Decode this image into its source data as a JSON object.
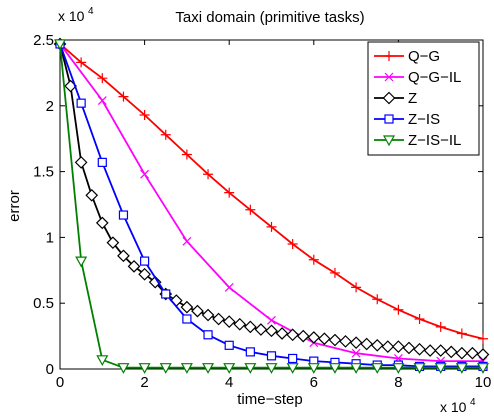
{
  "chart_data": {
    "type": "line",
    "title": "Taxi domain (primitive tasks)",
    "xlabel": "time−step",
    "ylabel": "error",
    "xlim": [
      0,
      10
    ],
    "ylim": [
      0,
      2.5
    ],
    "x_ticks": [
      "0",
      "2",
      "4",
      "6",
      "8",
      "10"
    ],
    "y_ticks": [
      "0",
      "0.5",
      "1",
      "1.5",
      "2",
      "2.5"
    ],
    "x_multiplier": {
      "base": "x 10",
      "exp": "4"
    },
    "y_multiplier": {
      "base": "x 10",
      "exp": "4"
    },
    "legend_position": "top-right",
    "grid": false,
    "series": [
      {
        "name": "Q−G",
        "color": "#ff0000",
        "marker": "plus",
        "x": [
          0,
          0.5,
          1.0,
          1.5,
          2.0,
          2.5,
          3.0,
          3.5,
          4.0,
          4.5,
          5.0,
          5.5,
          6.0,
          6.5,
          7.0,
          7.5,
          8.0,
          8.5,
          9.0,
          9.5,
          10.0
        ],
        "values": [
          2.47,
          2.33,
          2.21,
          2.07,
          1.93,
          1.78,
          1.63,
          1.48,
          1.34,
          1.21,
          1.08,
          0.95,
          0.83,
          0.73,
          0.62,
          0.53,
          0.45,
          0.38,
          0.32,
          0.27,
          0.23
        ]
      },
      {
        "name": "Q−G−IL",
        "color": "#ff00ff",
        "marker": "x",
        "x": [
          0,
          1.0,
          2.0,
          3.0,
          4.0,
          5.0,
          6.0,
          7.0,
          8.0,
          9.0,
          10.0
        ],
        "values": [
          2.47,
          2.04,
          1.48,
          0.97,
          0.62,
          0.37,
          0.2,
          0.12,
          0.08,
          0.06,
          0.06
        ]
      },
      {
        "name": "Z",
        "color": "#000000",
        "marker": "diamond",
        "x": [
          0,
          0.25,
          0.5,
          0.75,
          1.0,
          1.25,
          1.5,
          1.75,
          2.0,
          2.25,
          2.5,
          2.75,
          3.0,
          3.25,
          3.5,
          3.75,
          4.0,
          4.25,
          4.5,
          4.75,
          5.0,
          5.25,
          5.5,
          5.75,
          6.0,
          6.25,
          6.5,
          6.75,
          7.0,
          7.25,
          7.5,
          7.75,
          8.0,
          8.25,
          8.5,
          8.75,
          9.0,
          9.25,
          9.5,
          9.75,
          10.0
        ],
        "values": [
          2.47,
          2.15,
          1.57,
          1.32,
          1.11,
          0.96,
          0.86,
          0.78,
          0.72,
          0.66,
          0.57,
          0.52,
          0.47,
          0.44,
          0.41,
          0.38,
          0.36,
          0.34,
          0.32,
          0.3,
          0.29,
          0.27,
          0.26,
          0.25,
          0.24,
          0.23,
          0.22,
          0.21,
          0.2,
          0.19,
          0.18,
          0.17,
          0.17,
          0.16,
          0.15,
          0.14,
          0.14,
          0.13,
          0.12,
          0.12,
          0.11
        ]
      },
      {
        "name": "Z−IS",
        "color": "#0000ff",
        "marker": "square",
        "x": [
          0,
          0.5,
          1.0,
          1.5,
          2.0,
          2.5,
          3.0,
          3.5,
          4.0,
          4.5,
          5.0,
          5.5,
          6.0,
          6.5,
          7.0,
          7.5,
          8.0,
          8.5,
          9.0,
          9.5,
          10.0
        ],
        "values": [
          2.47,
          2.02,
          1.57,
          1.17,
          0.82,
          0.57,
          0.38,
          0.26,
          0.18,
          0.13,
          0.1,
          0.08,
          0.06,
          0.05,
          0.04,
          0.03,
          0.03,
          0.02,
          0.02,
          0.02,
          0.02
        ]
      },
      {
        "name": "Z−IS−IL",
        "color": "#008000",
        "marker": "triangle-down",
        "x": [
          0,
          0.5,
          1.0,
          1.5,
          2.0,
          2.5,
          3.0,
          3.5,
          4.0,
          4.5,
          5.0,
          5.5,
          6.0,
          6.5,
          7.0,
          7.5,
          8.0,
          8.5,
          9.0,
          9.5,
          10.0
        ],
        "values": [
          2.47,
          0.82,
          0.07,
          0.01,
          0.01,
          0.01,
          0.01,
          0.01,
          0.01,
          0.01,
          0.01,
          0.01,
          0.01,
          0.01,
          0.01,
          0.01,
          0.01,
          0.01,
          0.01,
          0.01,
          0.01
        ]
      }
    ]
  }
}
